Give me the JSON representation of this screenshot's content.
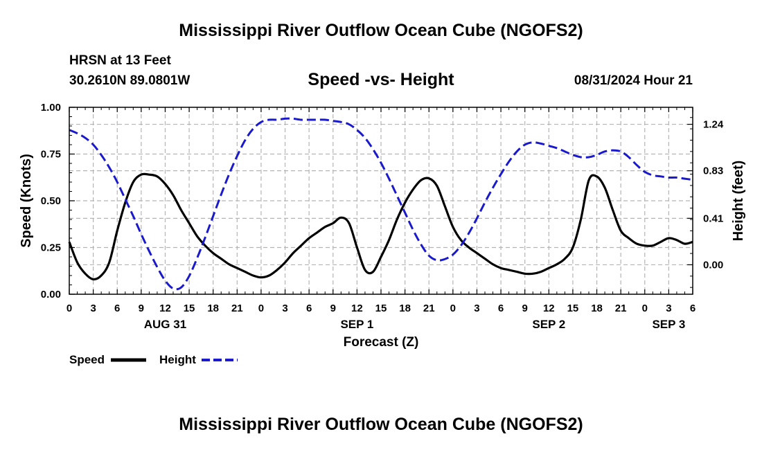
{
  "header": {
    "title": "Mississippi River Outflow Ocean Cube (NGOFS2)",
    "station": "HRSN at 13 Feet",
    "coords": "30.2610N  89.0801W",
    "subtitle": "Speed -vs- Height",
    "datetime": "08/31/2024 Hour 21",
    "bottom_title": "Mississippi River Outflow Ocean Cube (NGOFS2)"
  },
  "colors": {
    "speed": "#000000",
    "height": "#1a1acc",
    "grid": "#b4b4b4"
  },
  "chart_data": {
    "type": "line",
    "xlabel": "Forecast (Z)",
    "ylabel": "Speed (Knots)",
    "y2label": "Height (feet)",
    "xlim": [
      0,
      78
    ],
    "ylim": [
      0,
      1.0
    ],
    "y2lim": [
      -0.26,
      1.39
    ],
    "x_ticks": [
      0,
      3,
      6,
      9,
      12,
      15,
      18,
      21,
      24,
      27,
      30,
      33,
      36,
      39,
      42,
      45,
      48,
      51,
      54,
      57,
      60,
      63,
      66,
      69,
      72,
      75,
      78
    ],
    "x_tick_labels": [
      "0",
      "3",
      "6",
      "9",
      "12",
      "15",
      "18",
      "21",
      "0",
      "3",
      "6",
      "9",
      "12",
      "15",
      "18",
      "21",
      "0",
      "3",
      "6",
      "9",
      "12",
      "15",
      "18",
      "21",
      "0",
      "3",
      "6"
    ],
    "day_labels": [
      {
        "x": 12,
        "label": "AUG 31"
      },
      {
        "x": 36,
        "label": "SEP 1"
      },
      {
        "x": 60,
        "label": "SEP 2"
      },
      {
        "x": 75,
        "label": "SEP 3"
      }
    ],
    "y_ticks": [
      0,
      0.25,
      0.5,
      0.75,
      1.0
    ],
    "y_tick_labels": [
      "0.00",
      "0.25",
      "0.50",
      "0.75",
      "1.00"
    ],
    "y2_ticks": [
      0.0,
      0.41,
      0.83,
      1.24
    ],
    "y2_tick_labels": [
      "0.00",
      "0.41",
      "0.83",
      "1.24"
    ],
    "grid": true,
    "legend_position": "bottom-left",
    "series": [
      {
        "name": "Speed",
        "axis": "left",
        "color": "#000000",
        "dash": "solid",
        "x": [
          0,
          1,
          2,
          3,
          4,
          5,
          6,
          7,
          8,
          9,
          10,
          11,
          12,
          13,
          14,
          15,
          16,
          17,
          18,
          19,
          20,
          21,
          22,
          23,
          24,
          25,
          26,
          27,
          28,
          29,
          30,
          31,
          32,
          33,
          34,
          35,
          36,
          37,
          38,
          39,
          40,
          41,
          42,
          43,
          44,
          45,
          46,
          47,
          48,
          49,
          50,
          51,
          52,
          53,
          54,
          55,
          56,
          57,
          58,
          59,
          60,
          61,
          62,
          63,
          64,
          65,
          66,
          67,
          68,
          69,
          70,
          71,
          72,
          73,
          74,
          75,
          76,
          77,
          78
        ],
        "values": [
          0.28,
          0.17,
          0.11,
          0.08,
          0.1,
          0.17,
          0.34,
          0.49,
          0.6,
          0.64,
          0.64,
          0.63,
          0.59,
          0.53,
          0.45,
          0.38,
          0.31,
          0.26,
          0.22,
          0.19,
          0.16,
          0.14,
          0.12,
          0.1,
          0.09,
          0.1,
          0.13,
          0.17,
          0.22,
          0.26,
          0.3,
          0.33,
          0.36,
          0.38,
          0.41,
          0.38,
          0.25,
          0.13,
          0.12,
          0.2,
          0.29,
          0.4,
          0.49,
          0.56,
          0.61,
          0.62,
          0.58,
          0.47,
          0.36,
          0.29,
          0.25,
          0.22,
          0.19,
          0.16,
          0.14,
          0.13,
          0.12,
          0.11,
          0.11,
          0.12,
          0.14,
          0.16,
          0.19,
          0.25,
          0.4,
          0.61,
          0.63,
          0.57,
          0.45,
          0.34,
          0.3,
          0.27,
          0.26,
          0.26,
          0.28,
          0.3,
          0.29,
          0.27,
          0.28
        ]
      },
      {
        "name": "Height",
        "axis": "right",
        "color": "#1a1acc",
        "dash": "dashed",
        "x": [
          0,
          1,
          2,
          3,
          4,
          5,
          6,
          7,
          8,
          9,
          10,
          11,
          12,
          13,
          14,
          15,
          16,
          17,
          18,
          19,
          20,
          21,
          22,
          23,
          24,
          25,
          26,
          27,
          28,
          29,
          30,
          31,
          32,
          33,
          34,
          35,
          36,
          37,
          38,
          39,
          40,
          41,
          42,
          43,
          44,
          45,
          46,
          47,
          48,
          49,
          50,
          51,
          52,
          53,
          54,
          55,
          56,
          57,
          58,
          59,
          60,
          61,
          62,
          63,
          64,
          65,
          66,
          67,
          68,
          69,
          70,
          71,
          72,
          73,
          74,
          75,
          76,
          77,
          78
        ],
        "values": [
          1.19,
          1.16,
          1.12,
          1.06,
          0.97,
          0.86,
          0.73,
          0.58,
          0.43,
          0.27,
          0.12,
          -0.02,
          -0.14,
          -0.21,
          -0.2,
          -0.1,
          0.06,
          0.24,
          0.43,
          0.62,
          0.8,
          0.96,
          1.1,
          1.2,
          1.26,
          1.28,
          1.28,
          1.29,
          1.29,
          1.28,
          1.28,
          1.28,
          1.28,
          1.27,
          1.26,
          1.24,
          1.19,
          1.12,
          1.02,
          0.9,
          0.76,
          0.61,
          0.46,
          0.31,
          0.18,
          0.08,
          0.04,
          0.05,
          0.09,
          0.17,
          0.28,
          0.41,
          0.55,
          0.68,
          0.8,
          0.91,
          1.0,
          1.06,
          1.08,
          1.07,
          1.05,
          1.03,
          1.0,
          0.97,
          0.95,
          0.95,
          0.97,
          1.0,
          1.01,
          1.0,
          0.95,
          0.88,
          0.82,
          0.79,
          0.78,
          0.77,
          0.77,
          0.76,
          0.75
        ]
      }
    ]
  }
}
